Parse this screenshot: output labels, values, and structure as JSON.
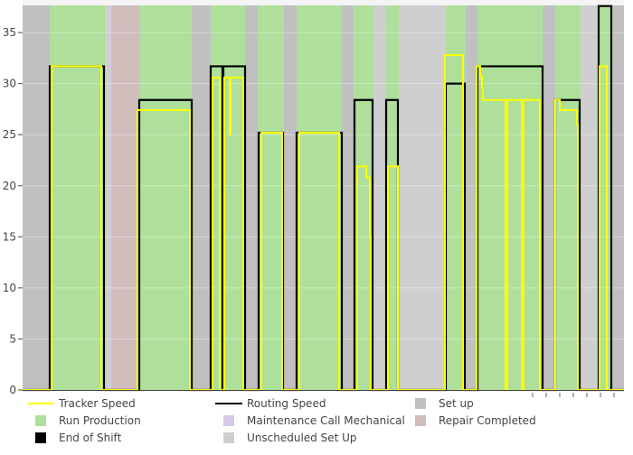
{
  "chart_data": {
    "type": "line",
    "title": "",
    "xlabel": "",
    "ylabel": "",
    "xlim": [
      0,
      665
    ],
    "ylim": [
      0,
      37.66
    ],
    "y_ticks": [
      "0",
      "5",
      "10",
      "15",
      "20",
      "25",
      "30",
      "35"
    ],
    "y_tick_values": [
      0,
      5,
      10,
      15,
      20,
      25,
      30,
      35
    ],
    "grid": true,
    "legend_position": "bottom",
    "legend": [
      {
        "label": "Tracker Speed",
        "kind": "line",
        "color": "#ffff00"
      },
      {
        "label": "Routing Speed",
        "kind": "line",
        "color": "#000000"
      },
      {
        "label": "Set up",
        "kind": "box",
        "color": "#c0c0c0"
      },
      {
        "label": "Run Production",
        "kind": "box",
        "color": "#aee09b"
      },
      {
        "label": "Maintenance Call Mechanical",
        "kind": "box",
        "color": "#d9c8e6"
      },
      {
        "label": "Repair Completed",
        "kind": "box",
        "color": "#d2bdbd"
      },
      {
        "label": "End of Shift",
        "kind": "box",
        "color": "#000000"
      },
      {
        "label": "Unscheduled Set Up",
        "kind": "box",
        "color": "#cfcfcf"
      }
    ],
    "state_bands": [
      {
        "state": "Set up",
        "start": 0,
        "end": 30
      },
      {
        "state": "Run Production",
        "start": 30,
        "end": 91
      },
      {
        "state": "Unscheduled Set Up",
        "start": 91,
        "end": 97
      },
      {
        "state": "Maintenance Call Mechanical",
        "start": 97,
        "end": 98
      },
      {
        "state": "Repair Completed",
        "start": 98,
        "end": 130
      },
      {
        "state": "Run Production",
        "start": 130,
        "end": 187
      },
      {
        "state": "Set up",
        "start": 187,
        "end": 208
      },
      {
        "state": "Run Production",
        "start": 208,
        "end": 246
      },
      {
        "state": "Set up",
        "start": 246,
        "end": 260
      },
      {
        "state": "Run Production",
        "start": 260,
        "end": 289
      },
      {
        "state": "Set up",
        "start": 289,
        "end": 303
      },
      {
        "state": "Run Production",
        "start": 303,
        "end": 353
      },
      {
        "state": "Set up",
        "start": 353,
        "end": 366
      },
      {
        "state": "Run Production",
        "start": 366,
        "end": 388
      },
      {
        "state": "Unscheduled Set Up",
        "start": 388,
        "end": 402
      },
      {
        "state": "Run Production",
        "start": 402,
        "end": 416
      },
      {
        "state": "Unscheduled Set Up",
        "start": 416,
        "end": 468
      },
      {
        "state": "Run Production",
        "start": 468,
        "end": 490
      },
      {
        "state": "Set up",
        "start": 490,
        "end": 503
      },
      {
        "state": "Run Production",
        "start": 503,
        "end": 575
      },
      {
        "state": "Set up",
        "start": 575,
        "end": 589
      },
      {
        "state": "Run Production",
        "start": 589,
        "end": 617
      },
      {
        "state": "Unscheduled Set Up",
        "start": 617,
        "end": 637
      },
      {
        "state": "Run Production",
        "start": 637,
        "end": 651
      },
      {
        "state": "Set up",
        "start": 651,
        "end": 665
      }
    ],
    "series": [
      {
        "name": "Routing Speed",
        "color": "#000000",
        "segments": [
          [
            0,
            30,
            0
          ],
          [
            30,
            90,
            31.7
          ],
          [
            90,
            129,
            0
          ],
          [
            129,
            187,
            28.4
          ],
          [
            187,
            208,
            0
          ],
          [
            208,
            221,
            31.7
          ],
          [
            221,
            222,
            0
          ],
          [
            222,
            246,
            31.7
          ],
          [
            246,
            261,
            0
          ],
          [
            261,
            288,
            25.2
          ],
          [
            288,
            303,
            0
          ],
          [
            303,
            353,
            25.2
          ],
          [
            353,
            367,
            0
          ],
          [
            367,
            387,
            28.4
          ],
          [
            387,
            402,
            0
          ],
          [
            402,
            415,
            28.4
          ],
          [
            415,
            468,
            0
          ],
          [
            468,
            489,
            30
          ],
          [
            489,
            503,
            0
          ],
          [
            503,
            575,
            31.7
          ],
          [
            575,
            589,
            0
          ],
          [
            589,
            616,
            28.4
          ],
          [
            616,
            637,
            0
          ],
          [
            637,
            651,
            37.6
          ],
          [
            651,
            665,
            0
          ]
        ]
      },
      {
        "name": "Tracker Speed",
        "color": "#ffff00",
        "segments": [
          [
            0,
            32,
            0
          ],
          [
            32,
            87,
            31.7
          ],
          [
            87,
            127,
            0
          ],
          [
            127,
            185,
            27.4
          ],
          [
            185,
            210,
            0
          ],
          [
            210,
            218,
            30.6
          ],
          [
            218,
            223,
            0
          ],
          [
            223,
            229,
            30.6
          ],
          [
            229,
            230,
            25
          ],
          [
            230,
            244,
            30.6
          ],
          [
            244,
            264,
            0
          ],
          [
            264,
            287,
            25.2
          ],
          [
            287,
            306,
            0
          ],
          [
            306,
            350,
            25.2
          ],
          [
            350,
            370,
            0
          ],
          [
            370,
            380,
            21.9
          ],
          [
            380,
            384,
            20.8
          ],
          [
            384,
            385,
            15
          ],
          [
            385,
            404,
            0
          ],
          [
            404,
            415,
            21.9
          ],
          [
            415,
            467,
            0
          ],
          [
            467,
            487,
            32.8
          ],
          [
            487,
            502,
            0
          ],
          [
            502,
            506,
            31.7
          ],
          [
            506,
            508,
            30.6
          ],
          [
            508,
            509,
            29.5
          ],
          [
            509,
            534,
            28.4
          ],
          [
            534,
            536,
            0
          ],
          [
            536,
            552,
            28.4
          ],
          [
            552,
            554,
            0
          ],
          [
            554,
            572,
            28.4
          ],
          [
            572,
            589,
            0
          ],
          [
            589,
            594,
            28.4
          ],
          [
            594,
            613,
            27.4
          ],
          [
            613,
            614,
            26
          ],
          [
            614,
            638,
            0
          ],
          [
            638,
            646,
            31.7
          ],
          [
            646,
            665,
            0
          ]
        ]
      }
    ]
  }
}
